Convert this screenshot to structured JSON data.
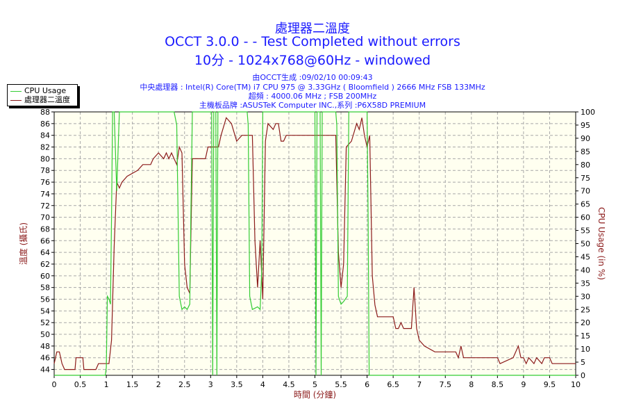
{
  "title": {
    "line1": "處理器二溫度",
    "line2": "OCCT 3.0.0 -  - Test Completed without errors",
    "line3": "10分 - 1024x768@60Hz - windowed"
  },
  "info_lines": [
    "由OCCT生成 :09/02/10 00:09:43",
    "中央處理器 : Intel(R) Core(TM) i7 CPU 975 @ 3.33GHz ( Bloomfield ) 2666 MHz FSB 133MHz",
    "超頻 : 4000.06 MHz ; FSB 200MHz",
    "主機板品牌 :ASUSTeK Computer INC.,系列 :P6X58D PREMIUM"
  ],
  "legend": {
    "cpu_usage": "CPU Usage",
    "temperature": "處理器二溫度"
  },
  "colors": {
    "temperature": "#8b1a1a",
    "cpu_usage": "#33cc33",
    "plot_bg": "#fffff0",
    "grid": "#a8a8a8",
    "title": "#1a1aff",
    "axis_label": "#8b1a1a"
  },
  "chart_data": {
    "type": "line",
    "xlabel": "時間 (分鐘)",
    "ylabel_left": "溫度 (攝氏)",
    "ylabel_right": "CPU Usage (in %)",
    "xlim": [
      0,
      10
    ],
    "ylim_left": [
      43,
      88
    ],
    "ylim_right": [
      0,
      100
    ],
    "x_ticks": [
      "0",
      "0.5",
      "1",
      "1.5",
      "2",
      "2.5",
      "3",
      "3.5",
      "4",
      "4.5",
      "5",
      "5.5",
      "6",
      "6.5",
      "7",
      "7.5",
      "8",
      "8.5",
      "9",
      "9.5",
      "10"
    ],
    "y_ticks_left": [
      "44",
      "46",
      "48",
      "50",
      "52",
      "54",
      "56",
      "58",
      "60",
      "62",
      "64",
      "66",
      "68",
      "70",
      "72",
      "74",
      "76",
      "78",
      "80",
      "82",
      "84",
      "86",
      "88"
    ],
    "y_ticks_right": [
      "0",
      "5",
      "10",
      "15",
      "20",
      "25",
      "30",
      "35",
      "40",
      "45",
      "50",
      "55",
      "60",
      "65",
      "70",
      "75",
      "80",
      "85",
      "90",
      "95",
      "100"
    ],
    "grid": true,
    "legend_position": "top-left",
    "series": [
      {
        "name": "處理器二溫度",
        "axis": "left",
        "points": [
          [
            0,
            45
          ],
          [
            0.05,
            47
          ],
          [
            0.1,
            47
          ],
          [
            0.15,
            45
          ],
          [
            0.2,
            44
          ],
          [
            0.4,
            44
          ],
          [
            0.42,
            46
          ],
          [
            0.55,
            46
          ],
          [
            0.57,
            44
          ],
          [
            0.8,
            44
          ],
          [
            0.85,
            45
          ],
          [
            1.05,
            45
          ],
          [
            1.1,
            49
          ],
          [
            1.15,
            65
          ],
          [
            1.2,
            76
          ],
          [
            1.25,
            75
          ],
          [
            1.3,
            76
          ],
          [
            1.4,
            77
          ],
          [
            1.6,
            78
          ],
          [
            1.7,
            79
          ],
          [
            1.85,
            79
          ],
          [
            1.9,
            80
          ],
          [
            2.0,
            81
          ],
          [
            2.1,
            80
          ],
          [
            2.15,
            81
          ],
          [
            2.2,
            80
          ],
          [
            2.25,
            81
          ],
          [
            2.3,
            80
          ],
          [
            2.35,
            79
          ],
          [
            2.4,
            82
          ],
          [
            2.45,
            81
          ],
          [
            2.5,
            62
          ],
          [
            2.55,
            58
          ],
          [
            2.6,
            57
          ],
          [
            2.65,
            80
          ],
          [
            2.9,
            80
          ],
          [
            2.95,
            82
          ],
          [
            3.15,
            82
          ],
          [
            3.2,
            84
          ],
          [
            3.3,
            87
          ],
          [
            3.4,
            86
          ],
          [
            3.5,
            83
          ],
          [
            3.6,
            84
          ],
          [
            3.7,
            84
          ],
          [
            3.8,
            84
          ],
          [
            3.85,
            66
          ],
          [
            3.9,
            58
          ],
          [
            3.95,
            66
          ],
          [
            4.0,
            56
          ],
          [
            4.05,
            83
          ],
          [
            4.1,
            86
          ],
          [
            4.2,
            85
          ],
          [
            4.25,
            86
          ],
          [
            4.3,
            86
          ],
          [
            4.35,
            83
          ],
          [
            4.4,
            83
          ],
          [
            4.45,
            84
          ],
          [
            4.9,
            84
          ],
          [
            5.0,
            84
          ],
          [
            5.4,
            84
          ],
          [
            5.45,
            64
          ],
          [
            5.5,
            58
          ],
          [
            5.55,
            62
          ],
          [
            5.6,
            82
          ],
          [
            5.7,
            83
          ],
          [
            5.8,
            86
          ],
          [
            5.85,
            85
          ],
          [
            5.9,
            87
          ],
          [
            5.95,
            84
          ],
          [
            6.0,
            82
          ],
          [
            6.05,
            84
          ],
          [
            6.1,
            60
          ],
          [
            6.15,
            55
          ],
          [
            6.2,
            53
          ],
          [
            6.5,
            53
          ],
          [
            6.55,
            51
          ],
          [
            6.6,
            51
          ],
          [
            6.65,
            52
          ],
          [
            6.7,
            51
          ],
          [
            6.85,
            51
          ],
          [
            6.9,
            58
          ],
          [
            6.95,
            51
          ],
          [
            7.0,
            49
          ],
          [
            7.1,
            48
          ],
          [
            7.3,
            47
          ],
          [
            7.7,
            47
          ],
          [
            7.75,
            46
          ],
          [
            7.8,
            48
          ],
          [
            7.85,
            46
          ],
          [
            8.0,
            46
          ],
          [
            8.5,
            46
          ],
          [
            8.55,
            45
          ],
          [
            8.8,
            46
          ],
          [
            8.9,
            48
          ],
          [
            8.95,
            46
          ],
          [
            9.0,
            46
          ],
          [
            9.05,
            45
          ],
          [
            9.1,
            46
          ],
          [
            9.2,
            45
          ],
          [
            9.25,
            46
          ],
          [
            9.35,
            45
          ],
          [
            9.4,
            46
          ],
          [
            9.5,
            46
          ],
          [
            9.55,
            45
          ],
          [
            10,
            45
          ]
        ]
      },
      {
        "name": "CPU Usage",
        "axis": "right",
        "points": [
          [
            0,
            0
          ],
          [
            0.98,
            0
          ],
          [
            1.0,
            3
          ],
          [
            1.02,
            30
          ],
          [
            1.05,
            29
          ],
          [
            1.08,
            27
          ],
          [
            1.1,
            60
          ],
          [
            1.12,
            100
          ],
          [
            1.15,
            100
          ],
          [
            1.2,
            70
          ],
          [
            1.25,
            100
          ],
          [
            2.3,
            100
          ],
          [
            2.35,
            95
          ],
          [
            2.4,
            30
          ],
          [
            2.45,
            25
          ],
          [
            2.5,
            26
          ],
          [
            2.55,
            25
          ],
          [
            2.6,
            27
          ],
          [
            2.62,
            60
          ],
          [
            2.65,
            100
          ],
          [
            3.02,
            100
          ],
          [
            3.04,
            0
          ],
          [
            3.06,
            100
          ],
          [
            3.1,
            100
          ],
          [
            3.12,
            0
          ],
          [
            3.14,
            100
          ],
          [
            3.7,
            100
          ],
          [
            3.72,
            95
          ],
          [
            3.75,
            30
          ],
          [
            3.8,
            25
          ],
          [
            3.9,
            26
          ],
          [
            3.95,
            25
          ],
          [
            3.98,
            40
          ],
          [
            4.0,
            100
          ],
          [
            5.0,
            100
          ],
          [
            5.02,
            0
          ],
          [
            5.04,
            100
          ],
          [
            5.1,
            100
          ],
          [
            5.12,
            0
          ],
          [
            5.14,
            100
          ],
          [
            5.4,
            100
          ],
          [
            5.42,
            95
          ],
          [
            5.45,
            30
          ],
          [
            5.5,
            27
          ],
          [
            5.55,
            28
          ],
          [
            5.62,
            30
          ],
          [
            5.65,
            100
          ],
          [
            6.0,
            100
          ],
          [
            6.02,
            60
          ],
          [
            6.04,
            0
          ],
          [
            10,
            0
          ]
        ]
      }
    ]
  }
}
